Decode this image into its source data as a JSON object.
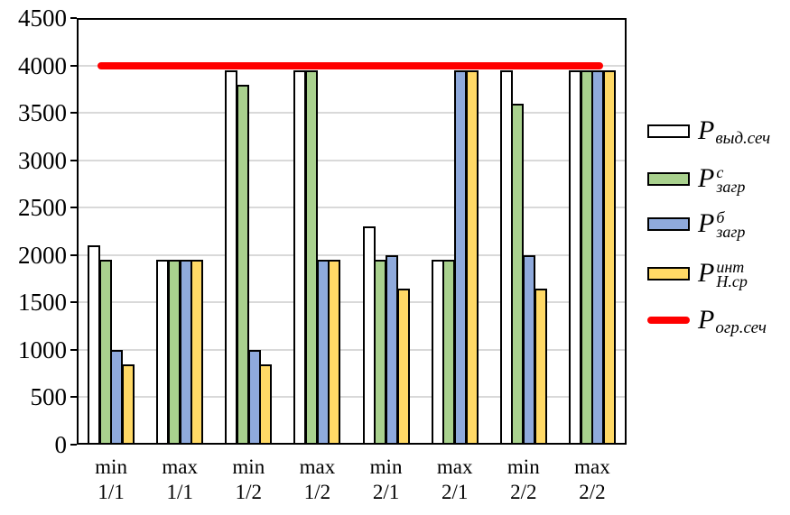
{
  "chart_data": {
    "type": "bar",
    "title": "",
    "xlabel": "",
    "ylabel": "",
    "ylim": [
      0,
      4500
    ],
    "ytick_step": 500,
    "yticks": [
      0,
      500,
      1000,
      1500,
      2000,
      2500,
      3000,
      3500,
      4000,
      4500
    ],
    "grid": true,
    "legend_position": "right",
    "categories": [
      {
        "line1": "min",
        "line2": "1/1"
      },
      {
        "line1": "max",
        "line2": "1/1"
      },
      {
        "line1": "min",
        "line2": "1/2"
      },
      {
        "line1": "max",
        "line2": "1/2"
      },
      {
        "line1": "min",
        "line2": "2/1"
      },
      {
        "line1": "max",
        "line2": "2/1"
      },
      {
        "line1": "min",
        "line2": "2/2"
      },
      {
        "line1": "max",
        "line2": "2/2"
      }
    ],
    "series": [
      {
        "name": "P выд.сеч",
        "color": "#FFFFFF",
        "values": [
          2100,
          1950,
          3950,
          3950,
          2300,
          1950,
          3950,
          3950
        ]
      },
      {
        "name": "P с загр",
        "color": "#A9D18E",
        "values": [
          1950,
          1950,
          3800,
          3950,
          1950,
          1950,
          3600,
          3950
        ]
      },
      {
        "name": "P б загр",
        "color": "#8FAADC",
        "values": [
          1000,
          1950,
          1000,
          1950,
          2000,
          3950,
          2000,
          3950
        ]
      },
      {
        "name": "P инт Н.ср",
        "color": "#FFD966",
        "values": [
          850,
          1950,
          850,
          1950,
          1650,
          3950,
          1650,
          3950
        ]
      }
    ],
    "limit_line": {
      "name": "P огр.сеч",
      "value": 4000,
      "color": "#FF0000"
    }
  },
  "legend": {
    "items": [
      {
        "swatch": "white-box-swatch",
        "base": "P",
        "sup": "",
        "sub": "выд.сеч"
      },
      {
        "swatch": "green-box-swatch",
        "base": "P",
        "sup": "с",
        "sub": "загр"
      },
      {
        "swatch": "blue-box-swatch",
        "base": "P",
        "sup": "б",
        "sub": "загр"
      },
      {
        "swatch": "yellow-box-swatch",
        "base": "P",
        "sup": "инт",
        "sub": "Н.ср"
      },
      {
        "swatch": "red-line-swatch",
        "base": "P",
        "sup": "",
        "sub": "огр.сеч"
      }
    ]
  },
  "colors": {
    "gridline": "#d9d9d9",
    "axis": "#000000",
    "background": "#ffffff"
  }
}
